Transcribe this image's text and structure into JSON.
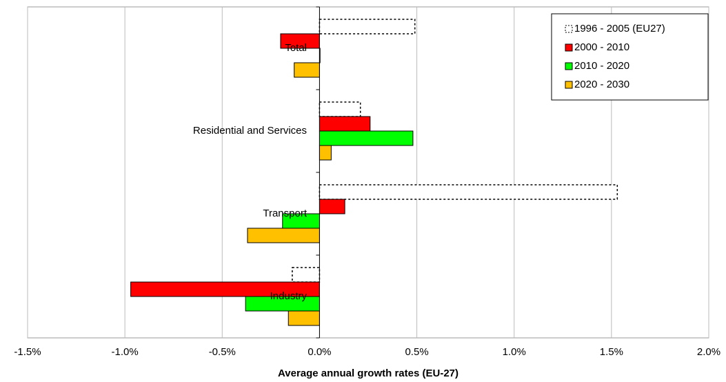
{
  "chart_data": {
    "type": "hbar",
    "x_label": "Average annual growth rates (EU-27)",
    "categories": [
      "Total",
      "Residential and Services",
      "Transport",
      "Industry"
    ],
    "series": [
      {
        "name": "1996 - 2005 (EU27)",
        "color": "#ffffff",
        "line_style": "dotted",
        "values": [
          0.49,
          0.21,
          1.53,
          -0.14
        ]
      },
      {
        "name": "2000 - 2010",
        "color": "#ff0000",
        "values": [
          -0.2,
          0.26,
          0.13,
          -0.97
        ]
      },
      {
        "name": "2010 - 2020",
        "color": "#00ff00",
        "values": [
          0.0,
          0.48,
          -0.19,
          -0.38
        ]
      },
      {
        "name": "2020 - 2030",
        "color": "#ffc000",
        "values": [
          -0.13,
          0.06,
          -0.37,
          -0.16
        ]
      }
    ],
    "xlim": [
      -1.5,
      2.0
    ],
    "xticks": [
      {
        "value": -1.5,
        "label": "-1.5%"
      },
      {
        "value": -1.0,
        "label": "-1.0%"
      },
      {
        "value": -0.5,
        "label": "-0.5%"
      },
      {
        "value": 0.0,
        "label": "0.0%"
      },
      {
        "value": 0.5,
        "label": "0.5%"
      },
      {
        "value": 1.0,
        "label": "1.0%"
      },
      {
        "value": 1.5,
        "label": "1.5%"
      },
      {
        "value": 2.0,
        "label": "2.0%"
      }
    ],
    "grid": true,
    "legend": "top-right"
  }
}
